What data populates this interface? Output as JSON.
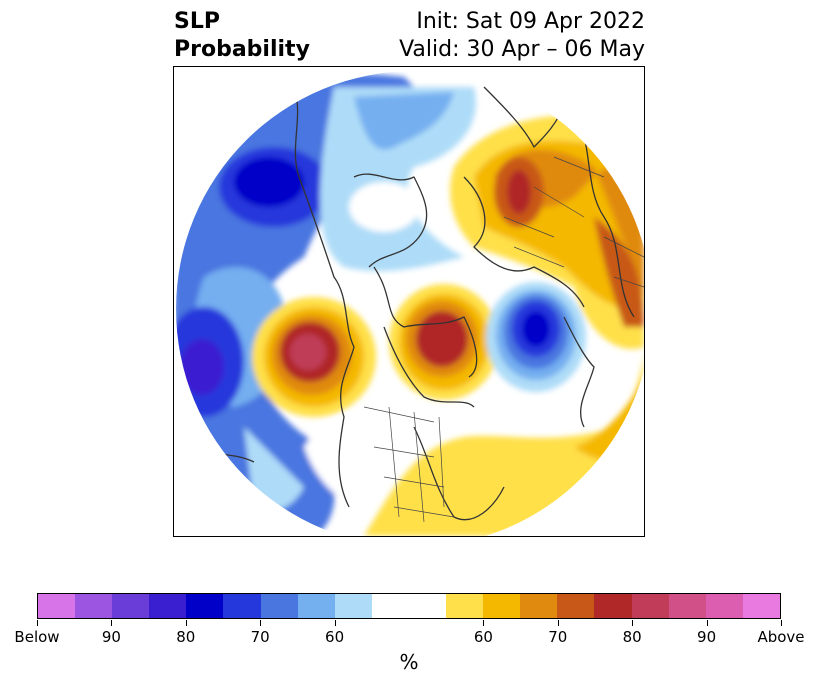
{
  "title": {
    "left_line1": "SLP",
    "left_line2": "Probability",
    "right_line1": "Init: Sat 09 Apr 2022",
    "right_line2": "Valid: 30 Apr – 06 May"
  },
  "colorbar": {
    "colors": [
      "#d674e8",
      "#9b55e0",
      "#6a3cd8",
      "#3a1fd0",
      "#0000c8",
      "#2538db",
      "#4a76e0",
      "#74aff0",
      "#aedcf8",
      "#ffffff",
      "#ffffff",
      "#ffe04a",
      "#f4b800",
      "#e08a10",
      "#c85818",
      "#b02828",
      "#c03c58",
      "#d25088",
      "#dc5eb0",
      "#e87ae0"
    ],
    "tick_labels": [
      "Below",
      "90",
      "80",
      "70",
      "60",
      "60",
      "70",
      "80",
      "90",
      "Above"
    ],
    "unit": "%"
  },
  "map": {
    "projection": "north polar stereographic",
    "anomalies": [
      {
        "region": "North Pacific / Alaska",
        "sign": "above",
        "peak": "70-80"
      },
      {
        "region": "Greenland / Canadian Arctic",
        "sign": "above",
        "peak": "70-80"
      },
      {
        "region": "Eurasia / Siberia",
        "sign": "above",
        "peak": "70-80"
      },
      {
        "region": "North Atlantic",
        "sign": "below",
        "peak": "80-90"
      },
      {
        "region": "Northwest Pacific",
        "sign": "below",
        "peak": "70-80"
      },
      {
        "region": "Western Pacific",
        "sign": "below",
        "peak": "90+"
      },
      {
        "region": "Eastern United States",
        "sign": "above",
        "peak": "50-60"
      }
    ]
  }
}
